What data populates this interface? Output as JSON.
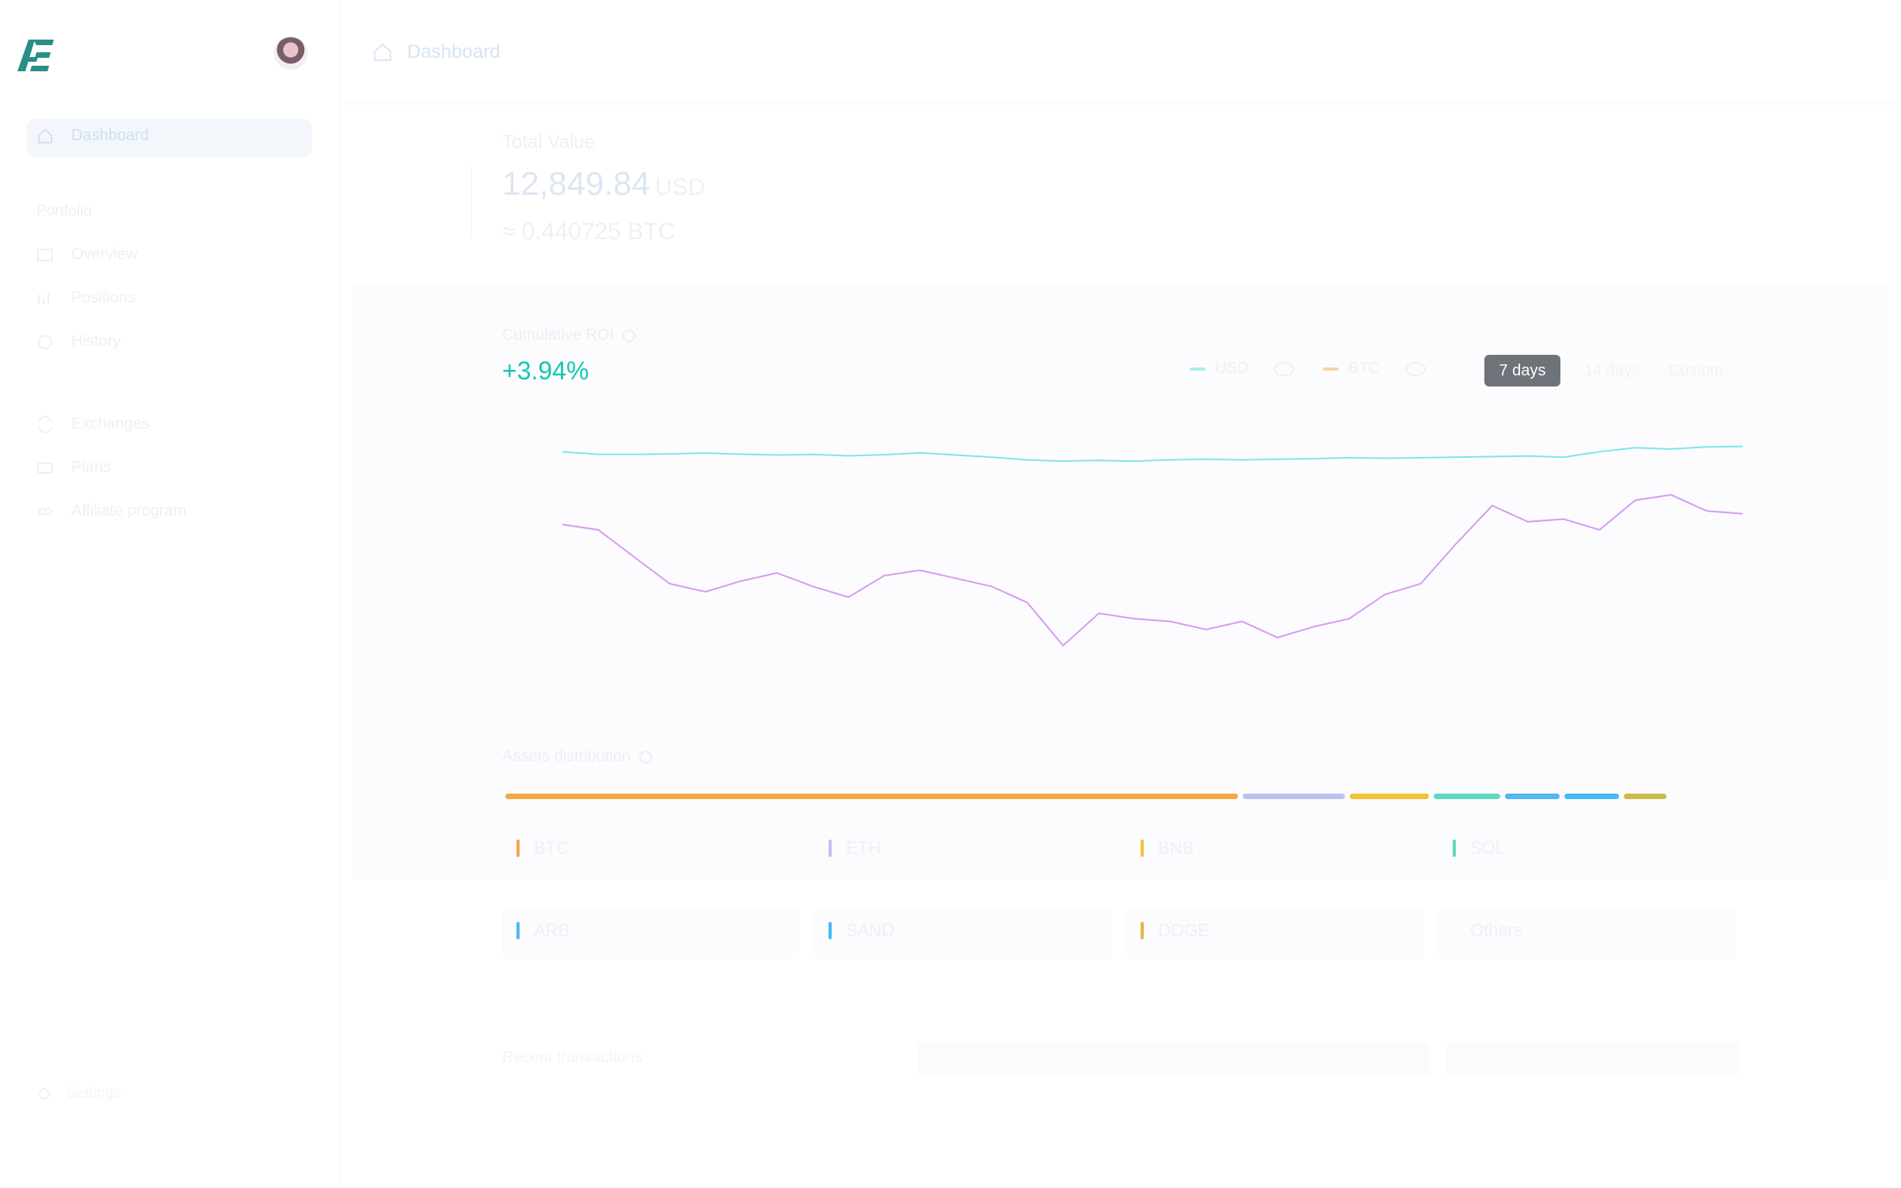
{
  "sidebar": {
    "items": [
      {
        "label": "Dashboard",
        "icon": "home-icon"
      },
      {
        "label": "Overview",
        "icon": "overview-icon"
      },
      {
        "label": "Positions",
        "icon": "positions-icon"
      },
      {
        "label": "History",
        "icon": "history-icon"
      },
      {
        "label": "Exchanges",
        "icon": "exchanges-icon"
      },
      {
        "label": "Plans",
        "icon": "plans-icon"
      },
      {
        "label": "Affiliate program",
        "icon": "affiliate-icon"
      }
    ],
    "section_label": "Portfolio",
    "settings_label": "Settings"
  },
  "header": {
    "breadcrumb": "Dashboard"
  },
  "total_value": {
    "label": "Total Value",
    "amount": "12,849.84",
    "unit": "USD",
    "btc": "≈ 0.440725 BTC"
  },
  "roi": {
    "label": "Cumulative ROI",
    "value": "+3.94%",
    "legend": [
      {
        "name": "USD",
        "color": "#34d8e8"
      },
      {
        "name": "BTC",
        "color": "#f3a94a"
      }
    ],
    "ranges": [
      "7 days",
      "14 days",
      "Custom"
    ],
    "active_range": "7 days"
  },
  "chart_data": {
    "type": "line",
    "series": [
      {
        "name": "USD",
        "color": "#7ee5ee",
        "values": [
          2.4,
          2.3,
          2.3,
          2.32,
          2.35,
          2.31,
          2.28,
          2.3,
          2.25,
          2.29,
          2.36,
          2.28,
          2.2,
          2.1,
          2.05,
          2.08,
          2.05,
          2.1,
          2.12,
          2.1,
          2.12,
          2.14,
          2.18,
          2.16,
          2.18,
          2.2,
          2.22,
          2.24,
          2.2,
          2.4,
          2.55,
          2.5,
          2.58,
          2.6
        ]
      },
      {
        "name": "BTC",
        "color": "#d79bf0",
        "values": [
          -0.3,
          -0.5,
          -1.5,
          -2.5,
          -2.8,
          -2.4,
          -2.1,
          -2.6,
          -3.0,
          -2.2,
          -2.0,
          -2.3,
          -2.6,
          -3.2,
          -4.8,
          -3.6,
          -3.8,
          -3.9,
          -4.2,
          -3.9,
          -4.5,
          -4.1,
          -3.8,
          -2.9,
          -2.5,
          -1.0,
          0.4,
          -0.2,
          -0.1,
          -0.5,
          0.6,
          0.8,
          0.2,
          0.1
        ]
      }
    ],
    "ylim": [
      -6,
      4
    ],
    "grid": false,
    "legend": "top-right"
  },
  "assets": {
    "label": "Assets distribution",
    "distribution": [
      {
        "name": "BTC",
        "share": 0.62,
        "color": "#f3a94a"
      },
      {
        "name": "ETH",
        "share": 0.09,
        "color": "#b9c4ee"
      },
      {
        "name": "BNB",
        "share": 0.07,
        "color": "#f0c43a"
      },
      {
        "name": "SOL",
        "share": 0.06,
        "color": "#5fd8c2"
      },
      {
        "name": "ARB",
        "share": 0.05,
        "color": "#52b8ef"
      },
      {
        "name": "SAND",
        "share": 0.05,
        "color": "#45bdf2"
      },
      {
        "name": "DOGE",
        "share": 0.04,
        "color": "#cbbb4a"
      }
    ],
    "cards": [
      {
        "name": "BTC",
        "color": "#f3a94a"
      },
      {
        "name": "ETH",
        "color": "#b9c4ee"
      },
      {
        "name": "BNB",
        "color": "#f0c43a"
      },
      {
        "name": "SOL",
        "color": "#5fd8c2"
      },
      {
        "name": "ARB",
        "color": "#52b8ef"
      },
      {
        "name": "SAND",
        "color": "#45bdf2"
      },
      {
        "name": "DOGE",
        "color": "#e6b44a"
      },
      {
        "name": "Others",
        "color": "#ffffff"
      }
    ]
  },
  "transactions": {
    "label": "Recent transactions"
  }
}
